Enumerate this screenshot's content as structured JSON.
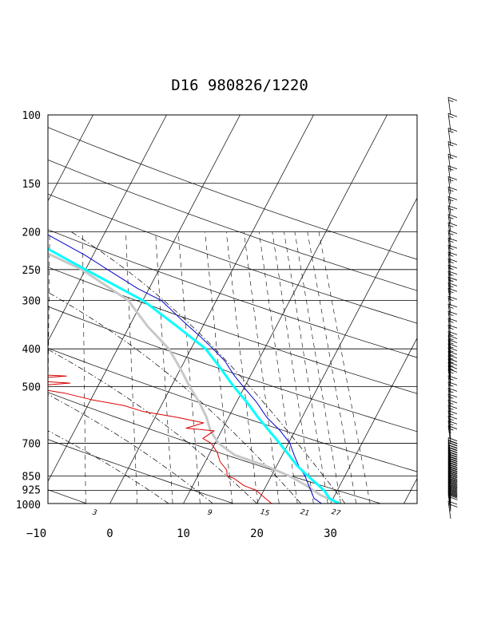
{
  "chart_data": {
    "type": "line",
    "title": "D16 980826/1220",
    "pressure_levels": [
      100,
      150,
      200,
      250,
      300,
      400,
      500,
      700,
      850,
      925,
      1000
    ],
    "pressure_labels": [
      "100",
      "150",
      "200",
      "250",
      "300",
      "400",
      "500",
      "700",
      "850",
      "925",
      "1000"
    ],
    "temperature_ticks": [
      -10,
      0,
      10,
      20,
      30
    ],
    "temperature_labels": [
      "−10",
      "0",
      "10",
      "20",
      "30"
    ],
    "mixing_ratio_labels": [
      "3",
      "9",
      "15",
      "21",
      "27"
    ],
    "y_scale": "log-pressure",
    "grid": true,
    "colors": {
      "temperature": "#0000cc",
      "dewpoint": "#dd0000",
      "parcel": "#00ffff",
      "virtual": "#c8c8c8",
      "grid": "#000000"
    },
    "series": [
      {
        "key": "temperature",
        "points": [
          [
            1000,
            28.8
          ],
          [
            970,
            27.4
          ],
          [
            925,
            26.4
          ],
          [
            900,
            25.8
          ],
          [
            850,
            24.6
          ],
          [
            800,
            23.0
          ],
          [
            750,
            21.6
          ],
          [
            700,
            20.2
          ],
          [
            650,
            18.0
          ],
          [
            600,
            15.2
          ],
          [
            550,
            12.8
          ],
          [
            500,
            9.8
          ],
          [
            470,
            7.9
          ],
          [
            450,
            6.7
          ],
          [
            430,
            5.5
          ],
          [
            400,
            3.0
          ],
          [
            370,
            0.2
          ],
          [
            340,
            -3.0
          ],
          [
            300,
            -7.5
          ],
          [
            280,
            -11.5
          ],
          [
            250,
            -17.0
          ],
          [
            230,
            -21.0
          ],
          [
            200,
            -28.5
          ],
          [
            175,
            -35.0
          ],
          [
            160,
            -41.0
          ],
          [
            150,
            -45.2
          ],
          [
            130,
            -50.0
          ],
          [
            115,
            -54.0
          ],
          [
            100,
            -57.5
          ]
        ]
      },
      {
        "key": "dewpoint",
        "points": [
          [
            1000,
            22.0
          ],
          [
            975,
            21.0
          ],
          [
            950,
            20.0
          ],
          [
            925,
            19.0
          ],
          [
            900,
            17.0
          ],
          [
            860,
            15.0
          ],
          [
            850,
            14.0
          ],
          [
            820,
            13.5
          ],
          [
            780,
            12.0
          ],
          [
            740,
            11.0
          ],
          [
            700,
            9.5
          ],
          [
            680,
            8.0
          ],
          [
            650,
            9.0
          ],
          [
            640,
            5.0
          ],
          [
            620,
            7.0
          ],
          [
            600,
            3.0
          ],
          [
            580,
            -2.0
          ],
          [
            560,
            -5.0
          ],
          [
            540,
            -10.0
          ],
          [
            520,
            -14.0
          ],
          [
            500,
            -20.0
          ],
          [
            490,
            -14.0
          ],
          [
            480,
            -22.0
          ],
          [
            470,
            -15.0
          ],
          [
            460,
            -25.0
          ],
          [
            450,
            -18.0
          ],
          [
            440,
            -27.0
          ],
          [
            430,
            -20.0
          ],
          [
            420,
            -30.0
          ],
          [
            410,
            -26.0
          ],
          [
            405,
            -28.0
          ],
          [
            400,
            -25.0
          ],
          [
            370,
            -22.0
          ],
          [
            340,
            -22.5
          ],
          [
            320,
            -23.5
          ],
          [
            300,
            -26.0
          ],
          [
            260,
            -31.0
          ],
          [
            250,
            -32.0
          ],
          [
            220,
            -37.0
          ],
          [
            200,
            -43.0
          ],
          [
            180,
            -49.0
          ],
          [
            160,
            -57.0
          ],
          [
            150,
            -62.0
          ],
          [
            130,
            -68.0
          ],
          [
            115,
            -71.5
          ],
          [
            100,
            -72.0
          ]
        ]
      },
      {
        "key": "parcel",
        "points": [
          [
            1000,
            31.2
          ],
          [
            970,
            29.5
          ],
          [
            925,
            28.2
          ],
          [
            850,
            25.0
          ],
          [
            800,
            22.8
          ],
          [
            750,
            20.9
          ],
          [
            700,
            18.8
          ],
          [
            650,
            16.5
          ],
          [
            600,
            14.0
          ],
          [
            550,
            11.5
          ],
          [
            500,
            8.5
          ],
          [
            450,
            5.5
          ],
          [
            400,
            2.0
          ],
          [
            350,
            -3.5
          ],
          [
            300,
            -10.0
          ],
          [
            250,
            -20.0
          ],
          [
            200,
            -32.0
          ],
          [
            175,
            -38.5
          ],
          [
            150,
            -46.0
          ],
          [
            125,
            -48.5
          ],
          [
            100,
            -51.5
          ]
        ]
      },
      {
        "key": "virtual",
        "points": [
          [
            1000,
            31.2
          ],
          [
            950,
            28.0
          ],
          [
            900,
            25.5
          ],
          [
            850,
            22.5
          ],
          [
            800,
            18.5
          ],
          [
            750,
            13.5
          ],
          [
            700,
            10.5
          ],
          [
            650,
            8.5
          ],
          [
            600,
            7.0
          ],
          [
            550,
            5.0
          ],
          [
            500,
            2.5
          ],
          [
            450,
            0.0
          ],
          [
            400,
            -3.0
          ],
          [
            350,
            -7.5
          ],
          [
            300,
            -12.0
          ],
          [
            250,
            -20.5
          ],
          [
            200,
            -34.0
          ],
          [
            175,
            -42.0
          ],
          [
            150,
            -50.0
          ],
          [
            125,
            -53.5
          ],
          [
            100,
            -55.0
          ]
        ]
      }
    ],
    "wind_profile": {
      "pressures": [
        1000,
        990,
        980,
        970,
        960,
        950,
        940,
        930,
        920,
        910,
        900,
        890,
        880,
        870,
        860,
        850,
        840,
        830,
        820,
        810,
        800,
        790,
        780,
        770,
        760,
        750,
        740,
        730,
        720,
        710,
        700,
        680,
        660,
        640,
        620,
        600,
        580,
        560,
        540,
        520,
        500,
        490,
        480,
        470,
        460,
        450,
        440,
        430,
        420,
        410,
        400,
        385,
        370,
        355,
        340,
        325,
        310,
        300,
        290,
        280,
        270,
        260,
        250,
        240,
        230,
        220,
        210,
        200,
        190,
        180,
        170,
        160,
        150,
        140,
        130,
        120,
        110,
        100
      ],
      "speeds_kt": [
        20,
        20,
        20,
        20,
        20,
        20,
        20,
        20,
        20,
        20,
        20,
        20,
        20,
        20,
        20,
        20,
        20,
        20,
        20,
        20,
        20,
        20,
        20,
        20,
        20,
        20,
        20,
        20,
        20,
        20,
        15,
        15,
        15,
        15,
        15,
        15,
        15,
        15,
        15,
        15,
        15,
        15,
        15,
        15,
        15,
        15,
        15,
        15,
        15,
        15,
        15,
        15,
        15,
        15,
        15,
        15,
        15,
        15,
        15,
        15,
        15,
        15,
        15,
        15,
        15,
        15,
        15,
        15,
        15,
        15,
        15,
        15,
        15,
        15,
        15,
        15,
        15,
        15
      ]
    }
  }
}
